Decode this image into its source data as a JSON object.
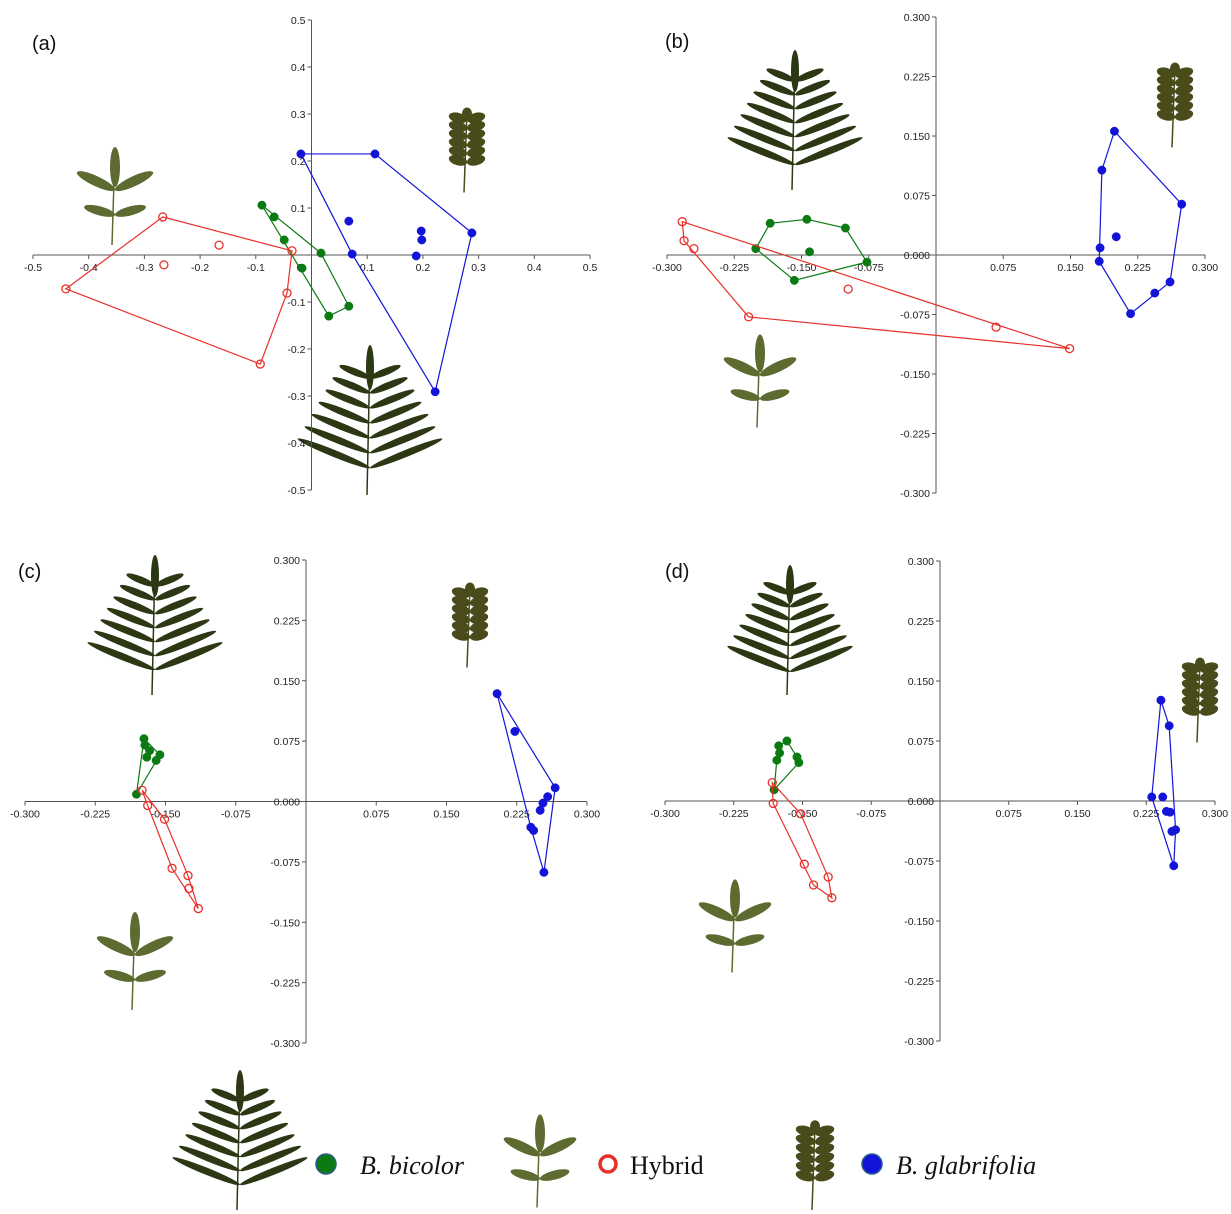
{
  "chart_data": [
    {
      "type": "scatter",
      "label": "(a)",
      "xlim": [
        -0.5,
        0.5
      ],
      "ylim": [
        -0.5,
        0.5
      ],
      "xticks": [
        -0.5,
        -0.4,
        -0.3,
        -0.2,
        -0.1,
        0,
        0.1,
        0.2,
        0.3,
        0.4,
        0.5
      ],
      "yticks": [
        0.5,
        0.4,
        0.3,
        0.2,
        0.1,
        -0.1,
        -0.2,
        -0.3,
        -0.4,
        -0.5
      ],
      "series": [
        {
          "color": "#0b7a12",
          "marker": "filled",
          "x": [
            -0.089,
            -0.067,
            -0.049,
            -0.017,
            0.017,
            0.031,
            0.067
          ],
          "values": [
            0.106,
            0.081,
            0.032,
            -0.028,
            0.004,
            -0.13,
            -0.109
          ]
        },
        {
          "color": "#e8302a",
          "marker": "open",
          "x": [
            -0.267,
            -0.166,
            -0.265,
            -0.441,
            -0.092,
            -0.044,
            -0.035
          ],
          "values": [
            0.081,
            0.021,
            -0.021,
            -0.072,
            -0.232,
            -0.081,
            0.009
          ]
        },
        {
          "color": "#1414d8",
          "marker": "filled",
          "x": [
            -0.019,
            0.114,
            0.067,
            0.073,
            0.197,
            0.198,
            0.188,
            0.288,
            0.222
          ],
          "values": [
            0.215,
            0.215,
            0.072,
            0.002,
            0.051,
            0.032,
            -0.002,
            0.047,
            -0.291
          ]
        }
      ]
    },
    {
      "type": "scatter",
      "label": "(b)",
      "xlim": [
        -0.3,
        0.3
      ],
      "ylim": [
        -0.3,
        0.3
      ],
      "xticks": [
        {
          "value": -0.3,
          "label": "-0.300"
        },
        {
          "value": -0.225,
          "label": "-0.225"
        },
        {
          "value": -0.15,
          "label": "-0.150"
        },
        {
          "value": -0.075,
          "label": "-0.075"
        },
        {
          "value": 0.075,
          "label": "0.075"
        },
        {
          "value": 0.15,
          "label": "0.150"
        },
        {
          "value": 0.225,
          "label": "0.225"
        },
        {
          "value": 0.3,
          "label": "0.300"
        }
      ],
      "yticks": [
        {
          "value": 0.3,
          "label": "0.300"
        },
        {
          "value": 0.225,
          "label": "0.225"
        },
        {
          "value": 0.15,
          "label": "0.150"
        },
        {
          "value": 0.075,
          "label": "0.075"
        },
        {
          "value": 0,
          "label": "0.000"
        },
        {
          "value": -0.075,
          "label": "-0.075"
        },
        {
          "value": -0.15,
          "label": "-0.150"
        },
        {
          "value": -0.225,
          "label": "-0.225"
        },
        {
          "value": -0.3,
          "label": "-0.300"
        }
      ],
      "series": [
        {
          "color": "#0b7a12",
          "marker": "filled",
          "x": [
            -0.201,
            -0.185,
            -0.144,
            -0.101,
            -0.077,
            -0.158,
            -0.141
          ],
          "values": [
            0.008,
            0.04,
            0.045,
            0.034,
            -0.009,
            -0.032,
            0.004
          ]
        },
        {
          "color": "#e8302a",
          "marker": "open",
          "x": [
            -0.283,
            -0.281,
            -0.27,
            -0.209,
            -0.098,
            0.067,
            0.149
          ],
          "values": [
            0.042,
            0.018,
            0.008,
            -0.078,
            -0.043,
            -0.091,
            -0.118
          ]
        },
        {
          "color": "#1414d8",
          "marker": "filled",
          "x": [
            0.199,
            0.185,
            0.183,
            0.182,
            0.201,
            0.274,
            0.261,
            0.244,
            0.217
          ],
          "values": [
            0.156,
            0.107,
            0.009,
            -0.008,
            0.023,
            0.064,
            -0.034,
            -0.048,
            -0.074
          ]
        }
      ]
    },
    {
      "type": "scatter",
      "label": "(c)",
      "xlim": [
        -0.3,
        0.3
      ],
      "ylim": [
        -0.3,
        0.3
      ],
      "xticks": [
        {
          "value": -0.3,
          "label": "-0.300"
        },
        {
          "value": -0.225,
          "label": "-0.225"
        },
        {
          "value": -0.15,
          "label": "-0.150"
        },
        {
          "value": -0.075,
          "label": "-0.075"
        },
        {
          "value": 0.075,
          "label": "0.075"
        },
        {
          "value": 0.15,
          "label": "0.150"
        },
        {
          "value": 0.225,
          "label": "0.225"
        },
        {
          "value": 0.3,
          "label": "0.300"
        }
      ],
      "yticks": [
        {
          "value": 0.3,
          "label": "0.300"
        },
        {
          "value": 0.225,
          "label": "0.225"
        },
        {
          "value": 0.15,
          "label": "0.150"
        },
        {
          "value": 0.075,
          "label": "0.075"
        },
        {
          "value": 0,
          "label": "0.000"
        },
        {
          "value": -0.075,
          "label": "-0.075"
        },
        {
          "value": -0.15,
          "label": "-0.150"
        },
        {
          "value": -0.225,
          "label": "-0.225"
        },
        {
          "value": -0.3,
          "label": "-0.300"
        }
      ],
      "series": [
        {
          "color": "#0b7a12",
          "marker": "filled",
          "x": [
            -0.181,
            -0.173,
            -0.172,
            -0.167,
            -0.17,
            -0.16,
            -0.156
          ],
          "values": [
            0.009,
            0.078,
            0.07,
            0.063,
            0.055,
            0.051,
            0.058
          ]
        },
        {
          "color": "#e8302a",
          "marker": "open",
          "x": [
            -0.175,
            -0.169,
            -0.151,
            -0.143,
            -0.126,
            -0.125,
            -0.115
          ],
          "values": [
            0.014,
            -0.005,
            -0.022,
            -0.083,
            -0.092,
            -0.108,
            -0.133
          ]
        },
        {
          "color": "#1414d8",
          "marker": "filled",
          "x": [
            0.204,
            0.223,
            0.266,
            0.258,
            0.253,
            0.25,
            0.24,
            0.243,
            0.254
          ],
          "values": [
            0.134,
            0.087,
            0.017,
            0.006,
            -0.002,
            -0.011,
            -0.032,
            -0.036,
            -0.088
          ]
        }
      ]
    },
    {
      "type": "scatter",
      "label": "(d)",
      "xlim": [
        -0.3,
        0.3
      ],
      "ylim": [
        -0.3,
        0.3
      ],
      "xticks": [
        {
          "value": -0.3,
          "label": "-0.300"
        },
        {
          "value": -0.225,
          "label": "-0.225"
        },
        {
          "value": -0.15,
          "label": "-0.150"
        },
        {
          "value": -0.075,
          "label": "-0.075"
        },
        {
          "value": 0.075,
          "label": "0.075"
        },
        {
          "value": 0.15,
          "label": "0.150"
        },
        {
          "value": 0.225,
          "label": "0.225"
        },
        {
          "value": 0.3,
          "label": "0.300"
        }
      ],
      "yticks": [
        {
          "value": 0.3,
          "label": "0.300"
        },
        {
          "value": 0.225,
          "label": "0.225"
        },
        {
          "value": 0.15,
          "label": "0.150"
        },
        {
          "value": 0.075,
          "label": "0.075"
        },
        {
          "value": 0,
          "label": "0.000"
        },
        {
          "value": -0.075,
          "label": "-0.075"
        },
        {
          "value": -0.15,
          "label": "-0.150"
        },
        {
          "value": -0.225,
          "label": "-0.225"
        },
        {
          "value": -0.3,
          "label": "-0.300"
        }
      ],
      "series": [
        {
          "color": "#0b7a12",
          "marker": "filled",
          "x": [
            -0.181,
            -0.176,
            -0.167,
            -0.175,
            -0.178,
            -0.156,
            -0.154
          ],
          "values": [
            0.014,
            0.069,
            0.075,
            0.06,
            0.051,
            0.055,
            0.048
          ]
        },
        {
          "color": "#e8302a",
          "marker": "open",
          "x": [
            -0.183,
            -0.182,
            -0.152,
            -0.148,
            -0.138,
            -0.122,
            -0.118
          ],
          "values": [
            0.023,
            -0.003,
            -0.016,
            -0.079,
            -0.105,
            -0.095,
            -0.121
          ]
        },
        {
          "color": "#1414d8",
          "marker": "filled",
          "x": [
            0.241,
            0.25,
            0.231,
            0.243,
            0.247,
            0.251,
            0.253,
            0.257,
            0.255
          ],
          "values": [
            0.126,
            0.094,
            0.005,
            0.005,
            -0.013,
            -0.014,
            -0.038,
            -0.036,
            -0.081
          ]
        }
      ]
    }
  ],
  "legend": [
    {
      "name": "B. bicolor",
      "color": "#0b7a12",
      "marker": "filled"
    },
    {
      "name": "Hybrid",
      "color": "#e8302a",
      "marker": "open"
    },
    {
      "name": "B. glabrifolia",
      "color": "#1414d8",
      "marker": "filled"
    }
  ]
}
